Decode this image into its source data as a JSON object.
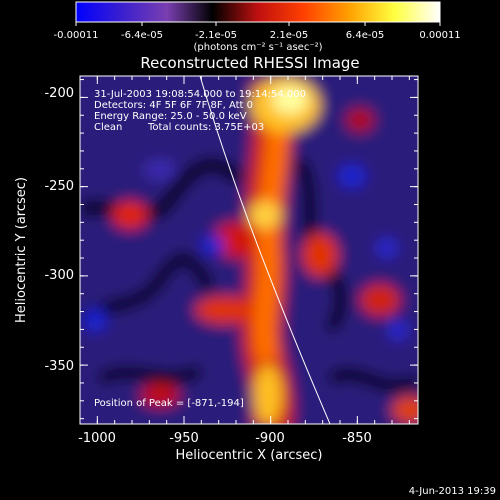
{
  "chart_data": {
    "type": "heatmap",
    "title": "Reconstructed RHESSI Image",
    "xlabel": "Heliocentric X (arcsec)",
    "ylabel": "Heliocentric Y (arcsec)",
    "xlim": [
      -1010,
      -815
    ],
    "ylim": [
      -383,
      -188
    ],
    "x_ticks": [
      -1000,
      -950,
      -900,
      -850
    ],
    "x_tick_labels": [
      "-1000",
      "-950",
      "-900",
      "-850"
    ],
    "y_ticks": [
      -200,
      -250,
      -300,
      -350
    ],
    "y_tick_labels": [
      "-200",
      "-250",
      "-300",
      "-350"
    ],
    "colorbar": {
      "min": -0.00011,
      "max": 0.00011,
      "tick_labels": [
        "-0.00011",
        "-6.4e-05",
        "-2.1e-05",
        "2.1e-05",
        "6.4e-05",
        "0.00011"
      ],
      "units_label": "(photons cm⁻² s⁻¹ asec⁻²)",
      "colors": [
        "#0000ff",
        "#3a1fd0",
        "#7a3fb0",
        "#000000",
        "#c01010",
        "#ff4000",
        "#ffa000",
        "#ffff40",
        "#ffffff"
      ]
    },
    "annotations": [
      "31-Jul-2003 19:08:54.000 to 19:14:54.000",
      "Detectors: 4F 5F 6F 7F 8F, Att 0",
      "Energy Range: 25.0 - 50.0 keV",
      "Clean",
      "Total counts: 3.75E+03"
    ],
    "peak_label": "Position of Peak = [-871,-194]",
    "peak": [
      -871,
      -194
    ],
    "grid": false
  },
  "footer_date": "4-Jun-2013 19:39"
}
